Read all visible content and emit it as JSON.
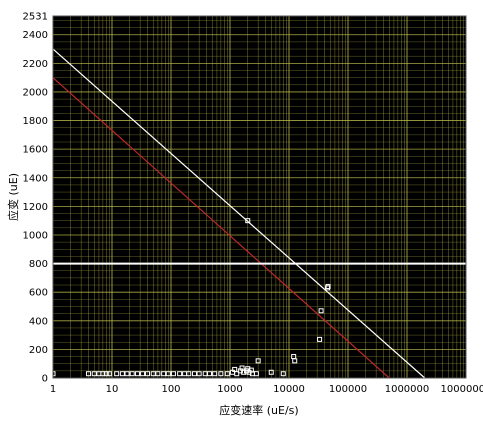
{
  "chart_data": {
    "type": "scatter",
    "title": "",
    "xlabel": "应变速率 (uE/s)",
    "ylabel": "应变 (uE)",
    "x_scale": "log",
    "xlim": [
      1,
      10000000
    ],
    "ylim": [
      0,
      2531
    ],
    "x_ticks": [
      1,
      10,
      100,
      1000,
      10000,
      100000,
      1000000,
      10000000
    ],
    "x_tick_labels": [
      "1",
      "10",
      "100",
      "1000",
      "10000",
      "100000",
      "1000000",
      "10000000"
    ],
    "y_ticks": [
      0,
      200,
      400,
      600,
      800,
      1000,
      1200,
      1400,
      1600,
      1800,
      2000,
      2200,
      2400,
      2531
    ],
    "y_tick_labels": [
      "0",
      "200",
      "400",
      "600",
      "800",
      "1000",
      "1200",
      "1400",
      "1600",
      "1800",
      "2000",
      "2200",
      "2400",
      "2531"
    ],
    "grid": true,
    "colors": {
      "plot_background": "#000000",
      "grid": "#b8b84a",
      "white_line": "#ffffff",
      "red_line": "#c0282a",
      "points": "#ffffff"
    },
    "lines": [
      {
        "kind": "log-linear",
        "color": "white",
        "points": [
          [
            1,
            2300
          ],
          [
            2000000,
            0
          ]
        ]
      },
      {
        "kind": "log-linear",
        "color": "red",
        "points": [
          [
            1,
            2100
          ],
          [
            500000,
            0
          ]
        ]
      },
      {
        "kind": "horizontal",
        "color": "white",
        "y": 800
      }
    ],
    "points": [
      [
        4,
        30
      ],
      [
        5,
        30
      ],
      [
        6,
        30
      ],
      [
        7,
        30
      ],
      [
        8,
        30
      ],
      [
        9,
        30
      ],
      [
        12,
        30
      ],
      [
        15,
        30
      ],
      [
        18,
        30
      ],
      [
        22,
        30
      ],
      [
        27,
        30
      ],
      [
        33,
        30
      ],
      [
        40,
        30
      ],
      [
        50,
        30
      ],
      [
        60,
        30
      ],
      [
        75,
        30
      ],
      [
        90,
        30
      ],
      [
        110,
        30
      ],
      [
        140,
        30
      ],
      [
        170,
        30
      ],
      [
        200,
        30
      ],
      [
        250,
        30
      ],
      [
        300,
        30
      ],
      [
        380,
        30
      ],
      [
        450,
        30
      ],
      [
        550,
        30
      ],
      [
        700,
        30
      ],
      [
        900,
        30
      ],
      [
        1100,
        40
      ],
      [
        1300,
        30
      ],
      [
        1500,
        50
      ],
      [
        1700,
        40
      ],
      [
        1900,
        50
      ],
      [
        2100,
        40
      ],
      [
        2400,
        30
      ],
      [
        2800,
        30
      ],
      [
        1200,
        60
      ],
      [
        1600,
        70
      ],
      [
        2000,
        65
      ],
      [
        2300,
        55
      ],
      [
        3000,
        120
      ],
      [
        5000,
        40
      ],
      [
        8000,
        30
      ],
      [
        12000,
        150
      ],
      [
        12500,
        120
      ],
      [
        33000,
        270
      ],
      [
        35000,
        470
      ],
      [
        45000,
        630
      ],
      [
        46000,
        640
      ],
      [
        2000,
        1100
      ],
      [
        1,
        30
      ]
    ]
  }
}
